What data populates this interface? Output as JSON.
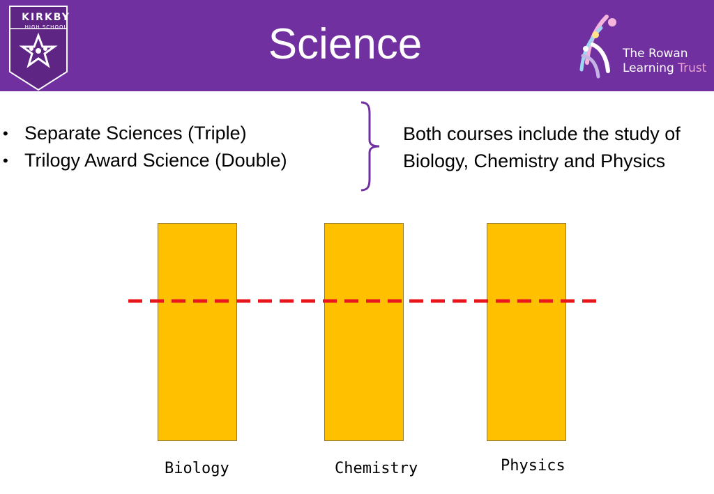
{
  "header": {
    "title": "Science",
    "school_logo": {
      "name": "KIRKBY",
      "subtitle": "HIGH SCHOOL"
    },
    "trust_logo": {
      "line1_a": "The ",
      "line1_b": "Rowan",
      "line2_a": "Learning ",
      "line2_b": "Trust"
    }
  },
  "bullets": [
    "Separate Sciences (Triple)",
    "Trilogy Award Science (Double)"
  ],
  "note": "Both courses include the study of Biology, Chemistry and Physics",
  "subjects": [
    {
      "label": "Biology"
    },
    {
      "label": "Chemistry"
    },
    {
      "label": "Physics"
    }
  ],
  "colors": {
    "header_bg": "#7030a0",
    "bar_fill": "#ffc000",
    "divider": "#e8161c",
    "brace": "#7030a0"
  }
}
